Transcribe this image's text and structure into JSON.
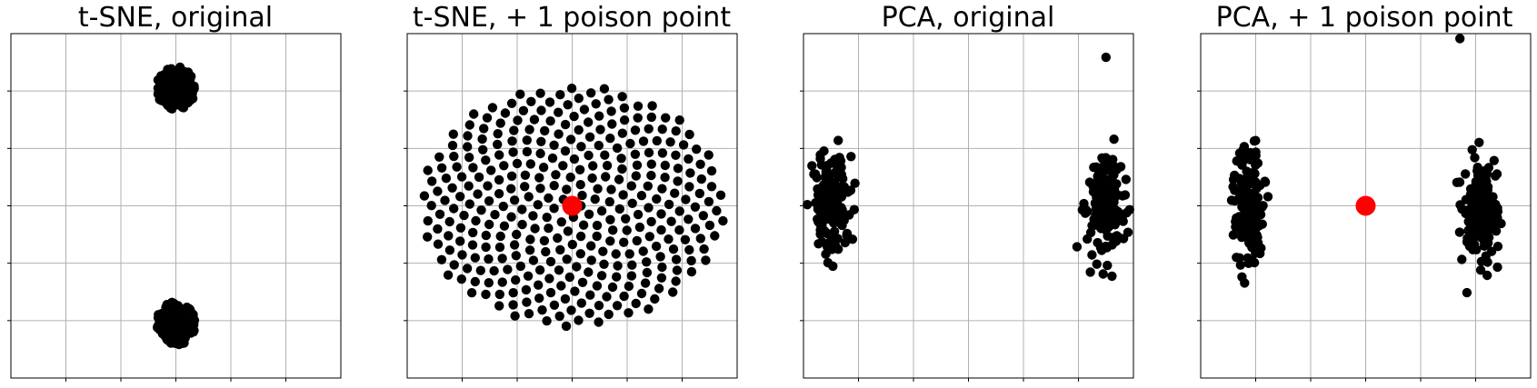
{
  "figure": {
    "background": "#ffffff",
    "point_color": "#000000",
    "poison_color": "#ff0000",
    "grid_color": "#b0b0b0"
  },
  "chart_data": [
    {
      "type": "scatter",
      "title": "t-SNE, original",
      "xlabel": "",
      "ylabel": "",
      "xlim": [
        -30,
        30
      ],
      "ylim": [
        -30,
        30
      ],
      "grid": true,
      "show_tick_labels": false,
      "series": [
        {
          "cluster": "top",
          "center": [
            0,
            20.5
          ],
          "spread": [
            3.5,
            3.8
          ],
          "count": 160,
          "distribution": "disc"
        },
        {
          "cluster": "bottom",
          "center": [
            0,
            -20.5
          ],
          "spread": [
            3.5,
            3.8
          ],
          "count": 160,
          "distribution": "disc"
        }
      ],
      "poison_point": null
    },
    {
      "type": "scatter",
      "title": "t-SNE, + 1 poison point",
      "xlabel": "",
      "ylabel": "",
      "xlim": [
        -16,
        16
      ],
      "ylim": [
        -16,
        16
      ],
      "grid": true,
      "show_tick_labels": false,
      "series": [
        {
          "cluster": "sunflower",
          "center": [
            0,
            0
          ],
          "spread": [
            14.8,
            11.2
          ],
          "count": 360,
          "distribution": "fermat-spiral"
        }
      ],
      "poison_point": [
        0,
        0
      ]
    },
    {
      "type": "scatter",
      "title": "PCA, original",
      "xlabel": "",
      "ylabel": "",
      "xlim": [
        -6,
        6
      ],
      "ylim": [
        -8,
        8
      ],
      "grid": true,
      "show_tick_labels": false,
      "series": [
        {
          "cluster": "left",
          "center": [
            -5,
            0
          ],
          "spread": [
            0.35,
            2.2
          ],
          "count": 160,
          "distribution": "gaussian"
        },
        {
          "cluster": "right",
          "center": [
            5,
            0
          ],
          "spread": [
            0.35,
            2.2
          ],
          "count": 160,
          "distribution": "gaussian"
        }
      ],
      "outliers": [
        [
          5,
          6.9
        ]
      ],
      "poison_point": null
    },
    {
      "type": "scatter",
      "title": "PCA, + 1 poison point",
      "xlabel": "",
      "ylabel": "",
      "xlim": [
        -7,
        7
      ],
      "ylim": [
        -7,
        7
      ],
      "grid": true,
      "show_tick_labels": false,
      "series": [
        {
          "cluster": "left",
          "center": [
            -5,
            0
          ],
          "spread": [
            0.35,
            2.0
          ],
          "count": 160,
          "distribution": "gaussian"
        },
        {
          "cluster": "right",
          "center": [
            5,
            0
          ],
          "spread": [
            0.35,
            2.0
          ],
          "count": 160,
          "distribution": "gaussian"
        }
      ],
      "outliers": [
        [
          4,
          6.8
        ]
      ],
      "poison_point": [
        0,
        0
      ]
    }
  ]
}
